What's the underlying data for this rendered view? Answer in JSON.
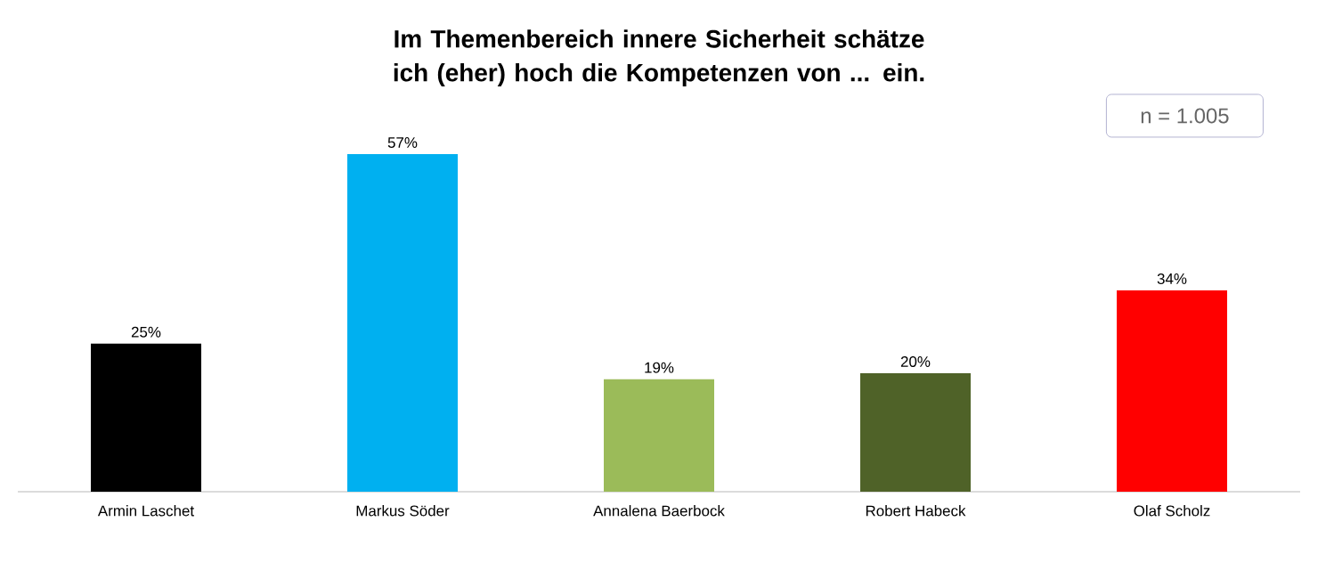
{
  "chart_data": {
    "type": "bar",
    "title": "Im Themenbereich innere Sicherheit schätze ich (eher) hoch die Kompetenzen von ... ein.",
    "categories": [
      "Armin Laschet",
      "Markus Söder",
      "Annalena Baerbock",
      "Robert Habeck",
      "Olaf Scholz"
    ],
    "values": [
      25,
      57,
      19,
      20,
      34
    ],
    "colors": [
      "#000000",
      "#00b0f0",
      "#9bbb59",
      "#4f6228",
      "#ff0000"
    ],
    "value_labels": [
      "25%",
      "57%",
      "19%",
      "20%",
      "34%"
    ],
    "annotations": [
      "n = 1.005"
    ]
  }
}
